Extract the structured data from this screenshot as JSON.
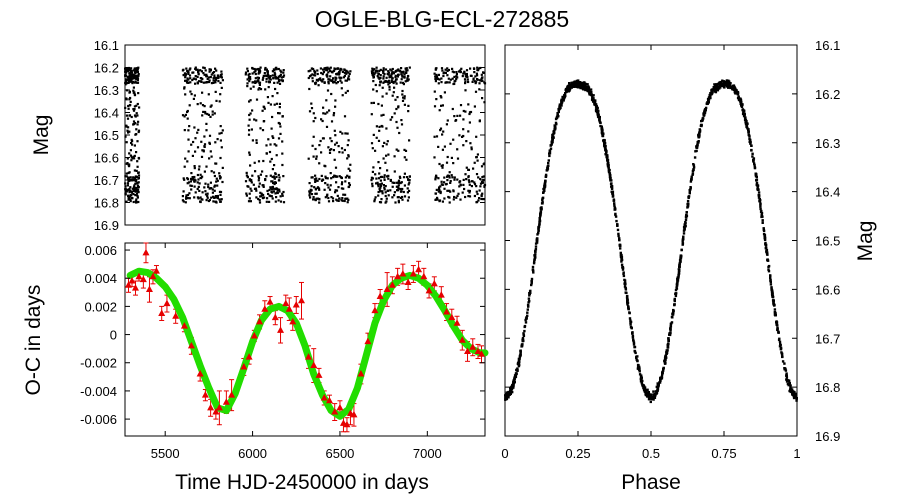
{
  "title": "OGLE-BLG-ECL-272885",
  "chart_data": [
    {
      "id": "lightcurve",
      "type": "scatter",
      "ylabel": "Mag",
      "ylim": [
        16.9,
        16.1
      ],
      "yticks": [
        "16.1",
        "16.2",
        "16.3",
        "16.4",
        "16.5",
        "16.6",
        "16.7",
        "16.8",
        "16.9"
      ],
      "xlim": [
        5270,
        7330
      ],
      "grid": false,
      "season_ranges": [
        [
          5270,
          5350
        ],
        [
          5600,
          5830
        ],
        [
          5960,
          6180
        ],
        [
          6320,
          6560
        ],
        [
          6680,
          6900
        ],
        [
          7040,
          7330
        ]
      ],
      "mag_range": [
        16.2,
        16.8
      ],
      "points_per_season": 300
    },
    {
      "id": "oc",
      "type": "scatter",
      "xlabel": "Time HJD-2450000 in days",
      "ylabel": "O-C in days",
      "xlim": [
        5270,
        7330
      ],
      "ylim": [
        -0.0072,
        0.0065
      ],
      "xticks": [
        "5500",
        "6000",
        "6500",
        "7000"
      ],
      "yticks": [
        "0.006",
        "0.004",
        "0.002",
        "0",
        "-0.002",
        "-0.004",
        "-0.006"
      ],
      "marker_color": "#e60000",
      "fit_color": "#22dd00",
      "fit": {
        "x": [
          5300,
          5350,
          5400,
          5450,
          5500,
          5550,
          5600,
          5650,
          5700,
          5750,
          5800,
          5850,
          5900,
          5950,
          6000,
          6050,
          6100,
          6150,
          6200,
          6250,
          6300,
          6350,
          6400,
          6450,
          6500,
          6550,
          6600,
          6650,
          6700,
          6750,
          6800,
          6850,
          6900,
          6950,
          7000,
          7050,
          7100,
          7150,
          7200,
          7250,
          7300,
          7330
        ],
        "y": [
          0.0042,
          0.0045,
          0.0044,
          0.004,
          0.0034,
          0.0025,
          0.0012,
          -0.0005,
          -0.0022,
          -0.0038,
          -0.0052,
          -0.0054,
          -0.0042,
          -0.0024,
          -0.0005,
          0.001,
          0.0018,
          0.002,
          0.0017,
          0.0008,
          -0.0008,
          -0.0028,
          -0.0043,
          -0.0054,
          -0.0058,
          -0.0053,
          -0.0038,
          -0.0015,
          0.0008,
          0.0024,
          0.0035,
          0.004,
          0.0042,
          0.004,
          0.0035,
          0.0027,
          0.0017,
          0.0006,
          -0.0004,
          -0.001,
          -0.0013,
          -0.0013
        ]
      },
      "measurements": {
        "x": [
          5290,
          5310,
          5330,
          5350,
          5375,
          5390,
          5410,
          5430,
          5450,
          5480,
          5510,
          5560,
          5610,
          5650,
          5700,
          5730,
          5760,
          5790,
          5810,
          5850,
          5880,
          5950,
          5980,
          6010,
          6040,
          6070,
          6100,
          6130,
          6160,
          6190,
          6210,
          6230,
          6250,
          6280,
          6320,
          6350,
          6380,
          6410,
          6440,
          6470,
          6500,
          6520,
          6540,
          6560,
          6580,
          6620,
          6660,
          6700,
          6730,
          6770,
          6800,
          6830,
          6860,
          6890,
          6920,
          6950,
          6980,
          7010,
          7040,
          7080,
          7110,
          7140,
          7170,
          7200,
          7230,
          7260,
          7290,
          7310
        ],
        "y": [
          0.0035,
          0.0038,
          0.0033,
          0.0041,
          0.0039,
          0.0058,
          0.0032,
          0.0041,
          0.0045,
          0.0015,
          0.0022,
          0.0013,
          0.0006,
          -0.0008,
          -0.0028,
          -0.0043,
          -0.0052,
          -0.0055,
          -0.0052,
          -0.0048,
          -0.0043,
          -0.0023,
          -0.0016,
          -0.0001,
          0.0009,
          0.0018,
          0.0023,
          0.0012,
          0.0003,
          0.0022,
          0.0018,
          0.0009,
          0.0021,
          0.0024,
          -0.0016,
          -0.0022,
          -0.0029,
          -0.0045,
          -0.0047,
          -0.0055,
          -0.0052,
          -0.0063,
          -0.0064,
          -0.0056,
          -0.0057,
          -0.0028,
          -0.0005,
          0.0017,
          0.0027,
          0.0032,
          0.0035,
          0.0041,
          0.0043,
          0.0037,
          0.0043,
          0.0046,
          0.0041,
          0.0031,
          0.0036,
          0.0028,
          0.0016,
          0.0012,
          0.0008,
          -0.0004,
          -0.0012,
          -0.0009,
          -0.0012,
          -0.0014
        ],
        "err": [
          0.0005,
          0.0004,
          0.0005,
          0.0003,
          0.0006,
          0.0007,
          0.0009,
          0.0005,
          0.0004,
          0.0005,
          0.0006,
          0.0005,
          0.0004,
          0.0006,
          0.0005,
          0.0004,
          0.0006,
          0.0005,
          0.0012,
          0.0008,
          0.0011,
          0.0006,
          0.0005,
          0.0004,
          0.0005,
          0.0006,
          0.0004,
          0.0005,
          0.0009,
          0.0006,
          0.0008,
          0.0006,
          0.0006,
          0.0013,
          0.0008,
          0.0012,
          0.0005,
          0.0005,
          0.0004,
          0.0006,
          0.0005,
          0.0006,
          0.0005,
          0.0008,
          0.0008,
          0.0007,
          0.0006,
          0.0005,
          0.0005,
          0.0012,
          0.0006,
          0.0006,
          0.0007,
          0.0005,
          0.0006,
          0.0006,
          0.0006,
          0.0005,
          0.0005,
          0.0006,
          0.0006,
          0.0006,
          0.0005,
          0.0007,
          0.0007,
          0.0006,
          0.0005,
          0.0006
        ]
      }
    },
    {
      "id": "phased",
      "type": "scatter",
      "xlabel": "Phase",
      "ylabel": "Mag",
      "xlim": [
        0,
        1
      ],
      "ylim": [
        16.9,
        16.1
      ],
      "xticks": [
        "0",
        "0.25",
        "0.5",
        "0.75",
        "1"
      ],
      "yticks": [
        "16.1",
        "16.2",
        "16.3",
        "16.4",
        "16.5",
        "16.6",
        "16.7",
        "16.8",
        "16.9"
      ],
      "max_mag": 16.18,
      "min_mag_primary": 16.82,
      "min_mag_secondary": 16.82,
      "points": 1600
    }
  ]
}
